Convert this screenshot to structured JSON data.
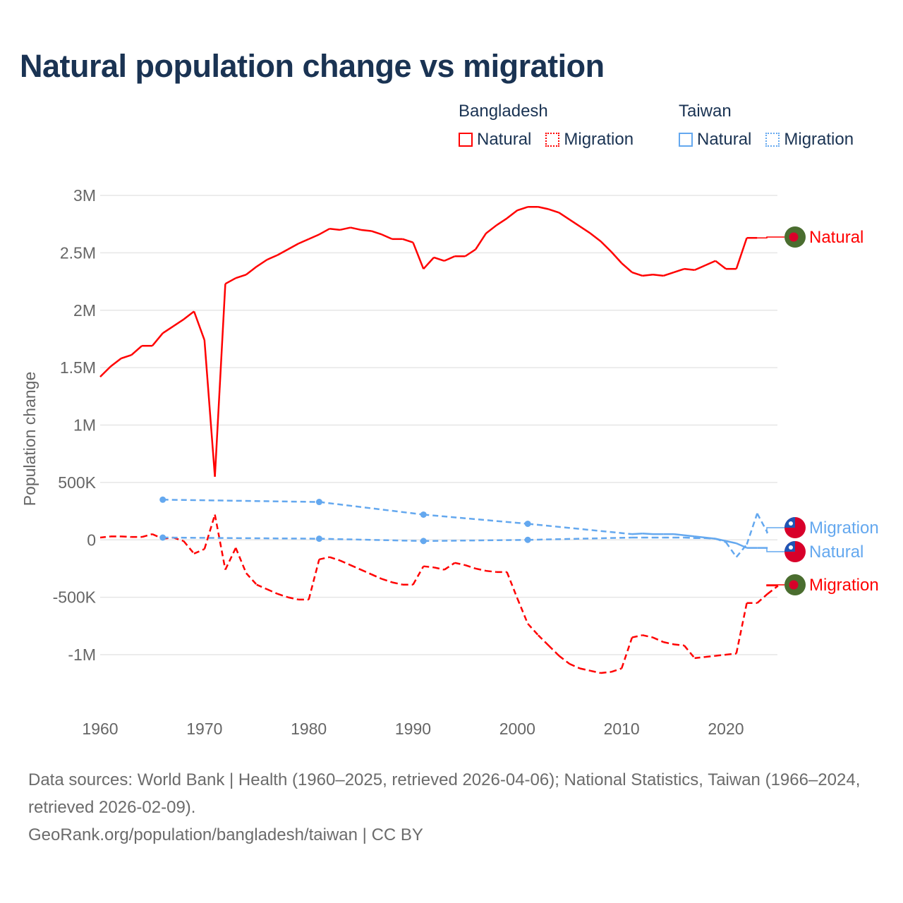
{
  "title": "Natural population change vs migration",
  "legend": {
    "groups": [
      {
        "name": "Bangladesh",
        "color": "#ff0000",
        "items": [
          "Natural",
          "Migration"
        ]
      },
      {
        "name": "Taiwan",
        "color": "#64a8ef",
        "items": [
          "Natural",
          "Migration"
        ]
      }
    ]
  },
  "footer": {
    "sources": "Data sources: World Bank | Health (1960–2025, retrieved 2026-04-06); National Statistics, Taiwan (1966–2024, retrieved 2026-02-09).",
    "link": "GeoRank.org/population/bangladesh/taiwan | CC BY"
  },
  "chart_data": {
    "type": "line",
    "title": "Natural population change vs migration",
    "xlabel": "",
    "ylabel": "Population change",
    "xlim": [
      1960,
      2025
    ],
    "ylim": [
      -1500000,
      3000000
    ],
    "x_ticks": [
      1960,
      1970,
      1980,
      1990,
      2000,
      2010,
      2020
    ],
    "x_tick_labels": [
      "1960",
      "1970",
      "1980",
      "1990",
      "2000",
      "2010",
      "2020"
    ],
    "y_ticks": [
      3000000,
      2500000,
      2000000,
      1500000,
      1000000,
      500000,
      0,
      -500000,
      -1000000
    ],
    "y_tick_labels": [
      "3M",
      "2.5M",
      "2M",
      "1.5M",
      "1M",
      "500K",
      "0",
      "-500K",
      "-1M"
    ],
    "grid": true,
    "legend_placement": "top-right",
    "series": [
      {
        "name": "Bangladesh Natural",
        "country": "Bangladesh",
        "label": "Natural",
        "color": "#ff0000",
        "style": "solid",
        "flag": "bangladesh",
        "x": [
          1960,
          1961,
          1962,
          1963,
          1964,
          1965,
          1966,
          1967,
          1968,
          1969,
          1970,
          1971,
          1972,
          1973,
          1974,
          1975,
          1976,
          1977,
          1978,
          1979,
          1980,
          1981,
          1982,
          1983,
          1984,
          1985,
          1986,
          1987,
          1988,
          1989,
          1990,
          1991,
          1992,
          1993,
          1994,
          1995,
          1996,
          1997,
          1998,
          1999,
          2000,
          2001,
          2002,
          2003,
          2004,
          2005,
          2006,
          2007,
          2008,
          2009,
          2010,
          2011,
          2012,
          2013,
          2014,
          2015,
          2016,
          2017,
          2018,
          2019,
          2020,
          2021,
          2022,
          2023
        ],
        "y": [
          1420000,
          1510000,
          1580000,
          1610000,
          1690000,
          1690000,
          1800000,
          1860000,
          1920000,
          1990000,
          1740000,
          550000,
          2230000,
          2280000,
          2310000,
          2380000,
          2440000,
          2480000,
          2530000,
          2580000,
          2620000,
          2660000,
          2710000,
          2700000,
          2720000,
          2700000,
          2690000,
          2660000,
          2620000,
          2620000,
          2590000,
          2360000,
          2460000,
          2430000,
          2470000,
          2470000,
          2530000,
          2670000,
          2740000,
          2800000,
          2870000,
          2900000,
          2900000,
          2880000,
          2850000,
          2790000,
          2730000,
          2670000,
          2600000,
          2510000,
          2410000,
          2330000,
          2300000,
          2310000,
          2300000,
          2330000,
          2360000,
          2350000,
          2390000,
          2430000,
          2360000,
          2360000,
          2630000,
          2630000
        ]
      },
      {
        "name": "Bangladesh Migration",
        "country": "Bangladesh",
        "label": "Migration",
        "color": "#ff0000",
        "style": "dashed",
        "flag": "bangladesh",
        "x": [
          1960,
          1961,
          1962,
          1963,
          1964,
          1965,
          1966,
          1967,
          1968,
          1969,
          1970,
          1971,
          1972,
          1973,
          1974,
          1975,
          1976,
          1977,
          1978,
          1979,
          1980,
          1981,
          1982,
          1983,
          1984,
          1985,
          1986,
          1987,
          1988,
          1989,
          1990,
          1991,
          1992,
          1993,
          1994,
          1995,
          1996,
          1997,
          1998,
          1999,
          2000,
          2001,
          2002,
          2003,
          2004,
          2005,
          2006,
          2007,
          2008,
          2009,
          2010,
          2011,
          2012,
          2013,
          2014,
          2015,
          2016,
          2017,
          2018,
          2019,
          2020,
          2021,
          2022,
          2023,
          2024,
          2025
        ],
        "y": [
          20000,
          30000,
          30000,
          25000,
          25000,
          50000,
          10000,
          20000,
          -10000,
          -120000,
          -80000,
          220000,
          -260000,
          -70000,
          -290000,
          -390000,
          -430000,
          -470000,
          -500000,
          -520000,
          -520000,
          -170000,
          -150000,
          -180000,
          -220000,
          -260000,
          -300000,
          -340000,
          -370000,
          -390000,
          -390000,
          -230000,
          -240000,
          -260000,
          -200000,
          -220000,
          -250000,
          -270000,
          -280000,
          -280000,
          -510000,
          -730000,
          -830000,
          -920000,
          -1010000,
          -1080000,
          -1120000,
          -1140000,
          -1160000,
          -1150000,
          -1120000,
          -850000,
          -830000,
          -850000,
          -890000,
          -910000,
          -920000,
          -1030000,
          -1020000,
          -1010000,
          -1000000,
          -990000,
          -550000,
          -550000,
          -470000,
          -400000
        ]
      },
      {
        "name": "Taiwan Natural",
        "country": "Taiwan",
        "label": "Natural",
        "color": "#64a8ef",
        "style": "solid",
        "flag": "taiwan",
        "x": [
          1966,
          1981,
          1991,
          2001,
          2011,
          2012,
          2013,
          2014,
          2015,
          2016,
          2017,
          2018,
          2019,
          2020,
          2021,
          2022,
          2023,
          2024
        ],
        "y": [
          350000,
          330000,
          220000,
          140000,
          50000,
          55000,
          50000,
          50000,
          50000,
          40000,
          30000,
          20000,
          10000,
          -10000,
          -30000,
          -70000,
          -70000,
          -70000
        ]
      },
      {
        "name": "Taiwan Migration",
        "country": "Taiwan",
        "label": "Migration",
        "color": "#64a8ef",
        "style": "dashed",
        "flag": "taiwan",
        "x": [
          1966,
          1981,
          1991,
          2001,
          2011,
          2012,
          2013,
          2014,
          2015,
          2016,
          2017,
          2018,
          2019,
          2020,
          2021,
          2022,
          2023,
          2024
        ],
        "y": [
          20000,
          10000,
          -10000,
          0,
          20000,
          20000,
          20000,
          20000,
          20000,
          20000,
          15000,
          15000,
          10000,
          -20000,
          -150000,
          -40000,
          230000,
          60000
        ]
      }
    ]
  }
}
